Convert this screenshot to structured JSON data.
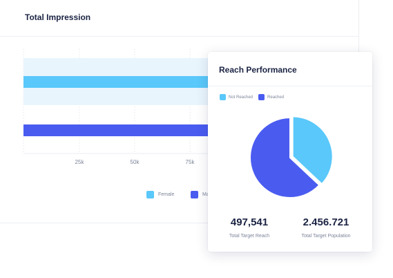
{
  "back_card": {
    "title": "Total Impression"
  },
  "front_card": {
    "title": "Reach Performance",
    "stats": [
      {
        "value": "497,541",
        "label": "Total Target Reach"
      },
      {
        "value": "2.456.721",
        "label": "Total Target Population"
      }
    ]
  },
  "colors": {
    "female": "#5ac8fa",
    "male": "#4a5cf0",
    "band": "#e9f5fd",
    "not_reached": "#5ac8fa",
    "reached": "#4a5cf0"
  },
  "chart_data": [
    {
      "type": "bar",
      "orientation": "horizontal",
      "title": "Total Impression",
      "x_ticks": [
        "25k",
        "50k",
        "75k"
      ],
      "legend": [
        {
          "label": "Female",
          "color": "#5ac8fa"
        },
        {
          "label": "Male",
          "color": "#4a5cf0"
        }
      ],
      "grid": true
    },
    {
      "type": "pie",
      "title": "Reach Performance",
      "legend": [
        {
          "label": "Not Reached",
          "color": "#5ac8fa"
        },
        {
          "label": "Reached",
          "color": "#4a5cf0"
        }
      ],
      "slices": [
        {
          "name": "Not Reached",
          "value": 37,
          "color": "#5ac8fa"
        },
        {
          "name": "Reached",
          "value": 63,
          "color": "#4a5cf0"
        }
      ]
    }
  ]
}
